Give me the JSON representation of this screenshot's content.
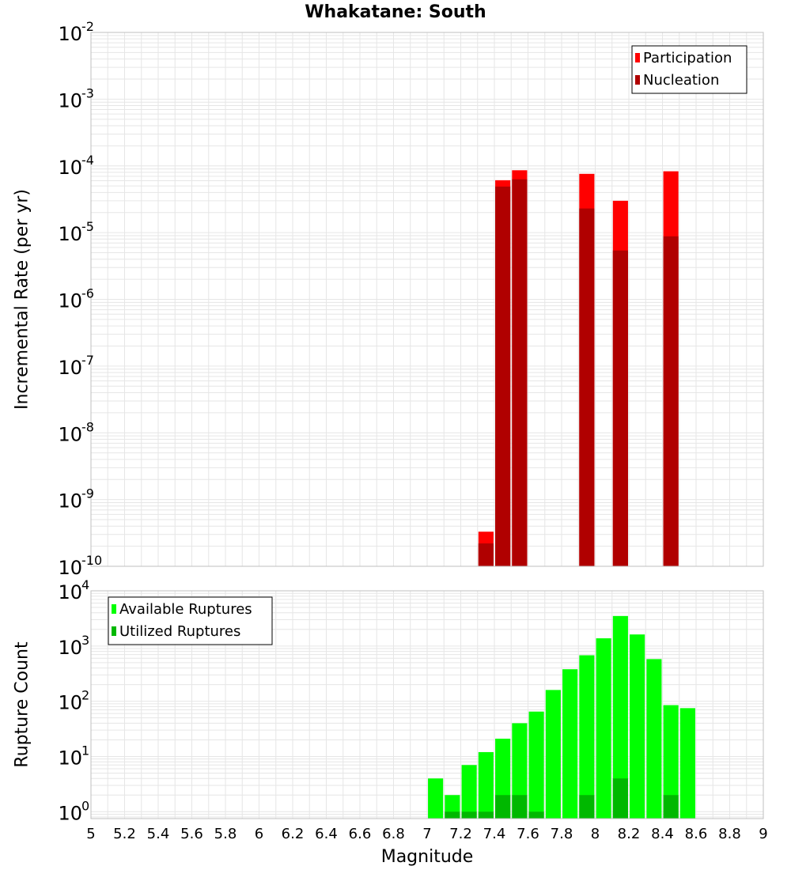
{
  "title": "Whakatane: South",
  "chart_data": [
    {
      "type": "bar",
      "panel": "top",
      "ylabel": "Incremental Rate (per yr)",
      "yscale": "log",
      "ylim": [
        1e-10,
        0.01
      ],
      "xlim": [
        5,
        9
      ],
      "grid": true,
      "legend_position": "top-right",
      "bar_width": 0.09,
      "series": [
        {
          "name": "Participation",
          "color": "#ff0000",
          "x": [
            7.35,
            7.45,
            7.55,
            7.95,
            8.15,
            8.45
          ],
          "values": [
            3.3e-10,
            6.1e-05,
            8.6e-05,
            7.6e-05,
            3e-05,
            8.3e-05
          ]
        },
        {
          "name": "Nucleation",
          "color": "#b00000",
          "x": [
            7.35,
            7.45,
            7.55,
            7.95,
            8.15,
            8.45
          ],
          "values": [
            2.2e-10,
            4.9e-05,
            6.3e-05,
            2.3e-05,
            5.4e-06,
            8.8e-06
          ]
        }
      ]
    },
    {
      "type": "bar",
      "panel": "bottom",
      "xlabel": "Magnitude",
      "ylabel": "Rupture Count",
      "yscale": "log",
      "ylim": [
        0.75,
        10000
      ],
      "xlim": [
        5,
        9
      ],
      "xticks": [
        "5",
        "5.2",
        "5.4",
        "5.6",
        "5.8",
        "6",
        "6.2",
        "6.4",
        "6.6",
        "6.8",
        "7",
        "7.2",
        "7.4",
        "7.6",
        "7.8",
        "8",
        "8.2",
        "8.4",
        "8.6",
        "8.8",
        "9"
      ],
      "grid": true,
      "legend_position": "top-left",
      "bar_width": 0.09,
      "series": [
        {
          "name": "Available Ruptures",
          "color": "#00ff00",
          "x": [
            7.05,
            7.15,
            7.25,
            7.35,
            7.45,
            7.55,
            7.65,
            7.75,
            7.85,
            7.95,
            8.05,
            8.15,
            8.25,
            8.35,
            8.45,
            8.55
          ],
          "values": [
            4,
            2,
            7,
            12,
            21,
            40,
            65,
            160,
            380,
            680,
            1380,
            3500,
            1620,
            580,
            85,
            75
          ]
        },
        {
          "name": "Utilized Ruptures",
          "color": "#00b800",
          "x": [
            7.15,
            7.25,
            7.35,
            7.45,
            7.55,
            7.65,
            7.95,
            8.15,
            8.45
          ],
          "values": [
            1,
            1,
            1,
            2,
            2,
            1,
            2,
            4,
            2
          ]
        }
      ]
    }
  ],
  "yticks_top": [
    {
      "base": "10",
      "exp": "-2"
    },
    {
      "base": "10",
      "exp": "-3"
    },
    {
      "base": "10",
      "exp": "-4"
    },
    {
      "base": "10",
      "exp": "-5"
    },
    {
      "base": "10",
      "exp": "-6"
    },
    {
      "base": "10",
      "exp": "-7"
    },
    {
      "base": "10",
      "exp": "-8"
    },
    {
      "base": "10",
      "exp": "-9"
    },
    {
      "base": "10",
      "exp": "-10"
    }
  ],
  "yticks_bottom": [
    {
      "base": "10",
      "exp": "4"
    },
    {
      "base": "10",
      "exp": "3"
    },
    {
      "base": "10",
      "exp": "2"
    },
    {
      "base": "10",
      "exp": "1"
    },
    {
      "base": "10",
      "exp": "0"
    }
  ],
  "colors": {
    "grid": "#e6e6e6",
    "frame": "#bfbfbf",
    "legend_border": "#000000"
  }
}
